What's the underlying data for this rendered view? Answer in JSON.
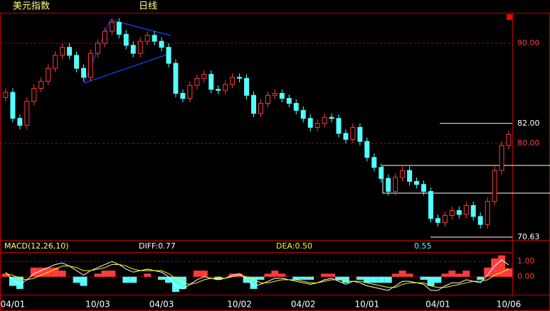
{
  "header": {
    "title": "美元指数",
    "period": "日线"
  },
  "chart_data": [
    {
      "type": "candlestick",
      "categories": [
        null,
        "04/01",
        null,
        null,
        null,
        null,
        null,
        null,
        null,
        null,
        null,
        null,
        null,
        "10/03",
        null,
        null,
        null,
        null,
        null,
        null,
        null,
        null,
        "04/03",
        null,
        null,
        null,
        null,
        null,
        null,
        null,
        null,
        null,
        null,
        "10/02",
        null,
        null,
        null,
        null,
        null,
        null,
        null,
        null,
        "04/02",
        null,
        null,
        null,
        null,
        null,
        null,
        null,
        null,
        "10/01",
        null,
        null,
        null,
        null,
        null,
        null,
        null,
        null,
        null,
        "04/01",
        null,
        null,
        null,
        null,
        null,
        null,
        null,
        null,
        null,
        "10/06"
      ],
      "open": [
        84.6,
        85.1,
        82.5,
        81.8,
        84.2,
        85.5,
        86.2,
        87.5,
        88.8,
        89.6,
        88.8,
        87.5,
        86.6,
        89.0,
        90.0,
        91.2,
        92.1,
        90.9,
        89.8,
        89.0,
        90.2,
        90.8,
        90.2,
        89.6,
        88.0,
        85.0,
        84.5,
        85.8,
        86.5,
        86.9,
        85.4,
        85.3,
        85.9,
        86.6,
        86.5,
        84.8,
        83.0,
        84.0,
        84.8,
        85.0,
        84.5,
        84.0,
        83.3,
        82.5,
        81.6,
        82.0,
        82.6,
        82.5,
        81.0,
        80.4,
        81.6,
        80.2,
        78.6,
        77.6,
        76.5,
        75.2,
        76.6,
        77.3,
        76.2,
        75.9,
        75.2,
        72.5,
        72.1,
        72.8,
        73.3,
        72.9,
        73.8,
        72.7,
        71.9,
        74.2,
        77.3,
        79.8
      ],
      "high": [
        85.5,
        85.5,
        82.9,
        84.6,
        85.9,
        86.6,
        87.9,
        89.2,
        90.0,
        90.0,
        89.2,
        87.9,
        89.4,
        90.4,
        91.6,
        92.5,
        92.5,
        91.3,
        90.2,
        90.6,
        91.2,
        91.2,
        90.6,
        90.0,
        88.4,
        85.4,
        86.2,
        86.9,
        87.3,
        87.3,
        85.8,
        86.3,
        87.0,
        87.0,
        86.9,
        85.2,
        84.4,
        85.2,
        85.4,
        85.4,
        84.9,
        84.4,
        83.7,
        82.9,
        82.4,
        83.0,
        83.0,
        82.9,
        81.4,
        82.0,
        82.0,
        80.6,
        79.0,
        78.0,
        76.9,
        77.0,
        77.7,
        77.7,
        76.6,
        76.3,
        75.6,
        72.9,
        73.2,
        73.7,
        73.7,
        74.2,
        74.2,
        73.1,
        74.6,
        77.7,
        80.2,
        81.3
      ],
      "low": [
        84.2,
        82.1,
        81.4,
        81.4,
        83.8,
        85.1,
        85.8,
        87.1,
        88.4,
        88.4,
        87.1,
        86.2,
        86.2,
        88.6,
        89.6,
        90.8,
        90.5,
        89.4,
        88.6,
        88.6,
        89.8,
        89.8,
        89.2,
        87.6,
        84.6,
        84.1,
        84.1,
        85.4,
        86.1,
        85.0,
        84.9,
        84.9,
        85.5,
        86.1,
        84.4,
        82.6,
        82.6,
        83.6,
        84.4,
        84.1,
        83.6,
        82.9,
        82.1,
        81.2,
        81.2,
        81.6,
        82.1,
        80.6,
        80.0,
        80.0,
        79.8,
        78.2,
        77.2,
        76.1,
        74.8,
        74.8,
        76.2,
        75.8,
        75.5,
        74.8,
        72.1,
        71.7,
        71.7,
        72.4,
        72.5,
        72.5,
        72.3,
        71.5,
        71.5,
        73.8,
        76.9,
        79.4
      ],
      "close": [
        85.1,
        82.5,
        81.8,
        84.2,
        85.5,
        86.2,
        87.5,
        88.8,
        89.6,
        88.8,
        87.5,
        86.6,
        89.0,
        90.0,
        91.2,
        92.1,
        90.9,
        89.8,
        89.0,
        90.2,
        90.8,
        90.2,
        89.6,
        88.0,
        85.0,
        84.5,
        85.8,
        86.5,
        86.9,
        85.4,
        85.3,
        85.9,
        86.6,
        86.5,
        84.8,
        83.0,
        84.0,
        84.8,
        85.0,
        84.5,
        84.0,
        83.3,
        82.5,
        81.6,
        82.0,
        82.6,
        82.5,
        81.0,
        80.4,
        81.6,
        80.2,
        78.6,
        77.6,
        76.5,
        75.2,
        76.6,
        77.3,
        76.2,
        75.9,
        75.2,
        72.5,
        72.1,
        72.8,
        73.3,
        72.9,
        73.8,
        72.7,
        71.9,
        74.2,
        77.3,
        79.8,
        80.9
      ],
      "up_color": "#ff3c3c",
      "down_color": "#54ffff",
      "ylim": [
        70.35,
        93.05
      ],
      "yticks": [
        {
          "value": 90,
          "label": "90.00"
        },
        {
          "value": 80,
          "label": "80.00"
        }
      ],
      "levels": [
        {
          "value": 82,
          "label": "82.00"
        },
        {
          "value": 70.63,
          "label": "70.63"
        }
      ],
      "grid": true
    },
    {
      "type": "macd",
      "label": "MACD(12,26,10)",
      "diff_label": "DIFF:0.77",
      "dea_label": "DEA:0.50",
      "macd_label": "0.55",
      "series": [
        {
          "name": "MACD",
          "color": "#ff3c3c",
          "neg_color": "#54ffff",
          "values": [
            0.2,
            -0.6,
            -0.8,
            0.0,
            0.6,
            0.6,
            0.6,
            0.6,
            0.4,
            0.0,
            -0.4,
            -0.6,
            0.0,
            0.2,
            0.4,
            0.4,
            0.0,
            -0.4,
            -0.4,
            0.0,
            0.2,
            0.0,
            -0.2,
            -0.4,
            -1.0,
            -0.8,
            0.0,
            0.4,
            0.4,
            0.0,
            -0.2,
            0.0,
            0.2,
            0.2,
            -0.4,
            -0.8,
            -0.2,
            0.2,
            0.4,
            0.2,
            0.0,
            -0.2,
            -0.2,
            -0.2,
            0.0,
            0.2,
            0.2,
            -0.2,
            -0.4,
            0.0,
            -0.2,
            -0.4,
            -0.4,
            -0.4,
            -0.4,
            0.2,
            0.4,
            0.2,
            0.0,
            -0.2,
            -0.6,
            -0.4,
            0.2,
            0.4,
            0.2,
            0.4,
            0.0,
            -0.2,
            0.6,
            1.2,
            1.4,
            0.55
          ]
        },
        {
          "name": "DIFF",
          "color": "#ffffff",
          "values": [
            0.3,
            -0.2,
            -0.5,
            -0.2,
            0.2,
            0.4,
            0.6,
            0.8,
            0.9,
            0.7,
            0.4,
            0.1,
            0.4,
            0.6,
            0.8,
            1.0,
            0.8,
            0.5,
            0.3,
            0.4,
            0.5,
            0.4,
            0.3,
            0.0,
            -0.6,
            -0.8,
            -0.5,
            -0.2,
            0.0,
            -0.1,
            -0.2,
            -0.1,
            0.1,
            0.2,
            -0.2,
            -0.6,
            -0.5,
            -0.3,
            -0.1,
            -0.1,
            -0.2,
            -0.3,
            -0.4,
            -0.5,
            -0.4,
            -0.2,
            -0.1,
            -0.3,
            -0.5,
            -0.3,
            -0.4,
            -0.6,
            -0.7,
            -0.8,
            -0.9,
            -0.6,
            -0.3,
            -0.3,
            -0.4,
            -0.5,
            -0.9,
            -0.9,
            -0.6,
            -0.4,
            -0.4,
            -0.2,
            -0.3,
            -0.4,
            0.1,
            0.7,
            1.1,
            0.77
          ]
        },
        {
          "name": "DEA",
          "color": "#ffff00",
          "values": [
            0.2,
            0.1,
            -0.1,
            -0.2,
            -0.1,
            0.1,
            0.3,
            0.5,
            0.7,
            0.7,
            0.6,
            0.4,
            0.4,
            0.5,
            0.6,
            0.8,
            0.8,
            0.7,
            0.5,
            0.4,
            0.4,
            0.4,
            0.4,
            0.2,
            -0.1,
            -0.4,
            -0.5,
            -0.4,
            -0.2,
            -0.1,
            -0.1,
            -0.1,
            0.0,
            0.1,
            0.0,
            -0.2,
            -0.4,
            -0.4,
            -0.3,
            -0.2,
            -0.2,
            -0.2,
            -0.3,
            -0.4,
            -0.4,
            -0.3,
            -0.2,
            -0.2,
            -0.3,
            -0.3,
            -0.3,
            -0.4,
            -0.5,
            -0.6,
            -0.7,
            -0.7,
            -0.5,
            -0.4,
            -0.4,
            -0.4,
            -0.6,
            -0.7,
            -0.7,
            -0.6,
            -0.5,
            -0.4,
            -0.3,
            -0.3,
            -0.2,
            0.1,
            0.3,
            0.5
          ]
        }
      ],
      "ylim": [
        -1.13,
        1.57
      ],
      "yticks": [
        {
          "value": 1,
          "label": "1.00"
        },
        {
          "value": 0,
          "label": "0.00"
        }
      ]
    }
  ]
}
